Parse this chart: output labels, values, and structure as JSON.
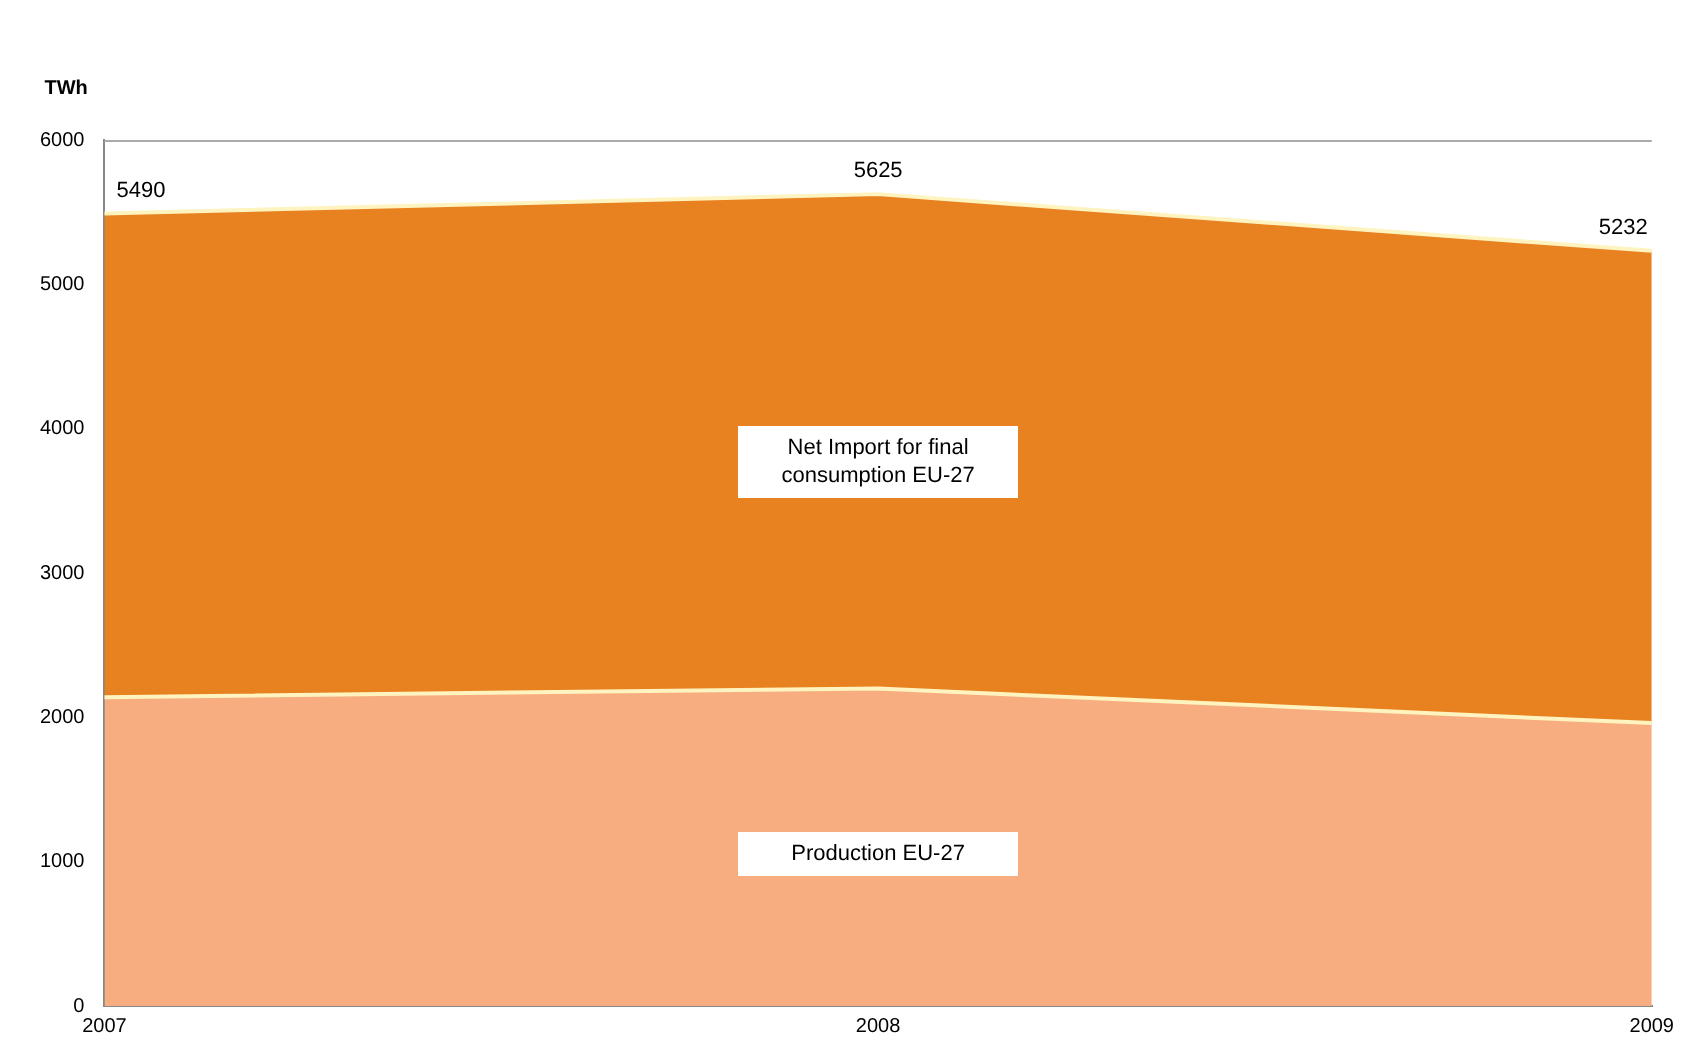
{
  "chart_data": {
    "type": "area",
    "ylabel": "TWh",
    "categories": [
      "2007",
      "2008",
      "2009"
    ],
    "stacked": true,
    "series": [
      {
        "name": "Production EU-27",
        "color": "#f7ad80",
        "values": [
          2140,
          2200,
          1960
        ]
      },
      {
        "name": "Net Import for final consumption EU-27",
        "color": "#e8811f",
        "values": [
          3350,
          3425,
          3272
        ]
      }
    ],
    "totals": [
      "5490",
      "5625",
      "5232"
    ],
    "ylim": [
      0,
      6000
    ],
    "yticks": [
      0,
      1000,
      2000,
      3000,
      4000,
      5000,
      6000
    ],
    "grid": false,
    "legend": false
  }
}
